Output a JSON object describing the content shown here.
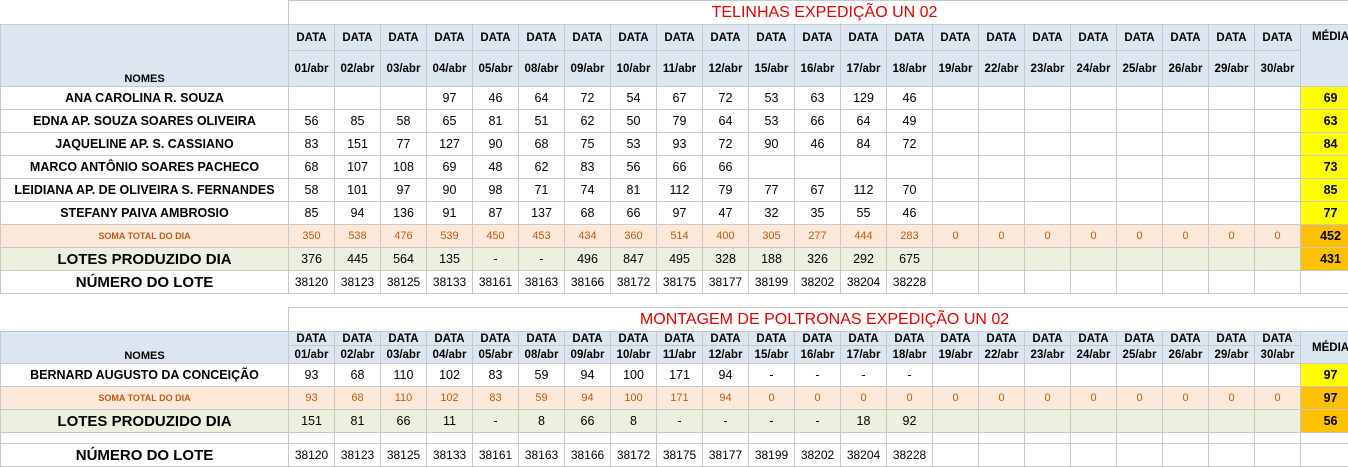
{
  "dates": [
    "01/abr",
    "02/abr",
    "03/abr",
    "04/abr",
    "05/abr",
    "08/abr",
    "09/abr",
    "10/abr",
    "11/abr",
    "12/abr",
    "15/abr",
    "16/abr",
    "17/abr",
    "18/abr",
    "19/abr",
    "22/abr",
    "23/abr",
    "24/abr",
    "25/abr",
    "26/abr",
    "29/abr",
    "30/abr"
  ],
  "data_label": "DATA",
  "media_label": "MÉDIA",
  "nomes_label": "NOMES",
  "soma_label": "SOMA TOTAL DO DIA",
  "lotes_label": "LOTES PRODUZIDO DIA",
  "numero_label": "NÚMERO DO LOTE",
  "section1": {
    "title": "TELINHAS EXPEDIÇÃO UN 02",
    "rows": [
      {
        "name": "ANA CAROLINA R. SOUZA",
        "values": [
          "",
          "",
          "",
          "97",
          "46",
          "64",
          "72",
          "54",
          "67",
          "72",
          "53",
          "63",
          "129",
          "46",
          "",
          "",
          "",
          "",
          "",
          "",
          "",
          ""
        ],
        "media": "69"
      },
      {
        "name": "EDNA AP. SOUZA SOARES OLIVEIRA",
        "values": [
          "56",
          "85",
          "58",
          "65",
          "81",
          "51",
          "62",
          "50",
          "79",
          "64",
          "53",
          "66",
          "64",
          "49",
          "",
          "",
          "",
          "",
          "",
          "",
          "",
          ""
        ],
        "media": "63"
      },
      {
        "name": "JAQUELINE AP.  S. CASSIANO",
        "values": [
          "83",
          "151",
          "77",
          "127",
          "90",
          "68",
          "75",
          "53",
          "93",
          "72",
          "90",
          "46",
          "84",
          "72",
          "",
          "",
          "",
          "",
          "",
          "",
          "",
          ""
        ],
        "media": "84"
      },
      {
        "name": "MARCO ANTÔNIO SOARES PACHECO",
        "values": [
          "68",
          "107",
          "108",
          "69",
          "48",
          "62",
          "83",
          "56",
          "66",
          "66",
          "",
          "",
          "",
          "",
          "",
          "",
          "",
          "",
          "",
          "",
          "",
          ""
        ],
        "media": "73"
      },
      {
        "name": "LEIDIANA AP. DE OLIVEIRA S. FERNANDES",
        "values": [
          "58",
          "101",
          "97",
          "90",
          "98",
          "71",
          "74",
          "81",
          "112",
          "79",
          "77",
          "67",
          "112",
          "70",
          "",
          "",
          "",
          "",
          "",
          "",
          "",
          ""
        ],
        "media": "85"
      },
      {
        "name": "STEFANY PAIVA AMBROSIO",
        "values": [
          "85",
          "94",
          "136",
          "91",
          "87",
          "137",
          "68",
          "66",
          "97",
          "47",
          "32",
          "35",
          "55",
          "46",
          "",
          "",
          "",
          "",
          "",
          "",
          "",
          ""
        ],
        "media": "77"
      }
    ],
    "soma": {
      "values": [
        "350",
        "538",
        "476",
        "539",
        "450",
        "453",
        "434",
        "360",
        "514",
        "400",
        "305",
        "277",
        "444",
        "283",
        "0",
        "0",
        "0",
        "0",
        "0",
        "0",
        "0",
        "0"
      ],
      "media": "452"
    },
    "lotes": {
      "values": [
        "376",
        "445",
        "564",
        "135",
        "-",
        "-",
        "496",
        "847",
        "495",
        "328",
        "188",
        "326",
        "292",
        "675",
        "",
        "",
        "",
        "",
        "",
        "",
        "",
        ""
      ],
      "media": "431"
    },
    "numero": {
      "values": [
        "38120",
        "38123",
        "38125",
        "38133",
        "38161",
        "38163",
        "38166",
        "38172",
        "38175",
        "38177",
        "38199",
        "38202",
        "38204",
        "38228",
        "",
        "",
        "",
        "",
        "",
        "",
        "",
        ""
      ]
    }
  },
  "section2": {
    "title": "MONTAGEM DE POLTRONAS EXPEDIÇÃO UN 02",
    "rows": [
      {
        "name": "BERNARD AUGUSTO DA CONCEIÇÃO",
        "values": [
          "93",
          "68",
          "110",
          "102",
          "83",
          "59",
          "94",
          "100",
          "171",
          "94",
          "-",
          "-",
          "-",
          "-",
          "",
          "",
          "",
          "",
          "",
          "",
          "",
          ""
        ],
        "media": "97"
      }
    ],
    "soma": {
      "values": [
        "93",
        "68",
        "110",
        "102",
        "83",
        "59",
        "94",
        "100",
        "171",
        "94",
        "0",
        "0",
        "0",
        "0",
        "0",
        "0",
        "0",
        "0",
        "0",
        "0",
        "0",
        "0"
      ],
      "media": "97"
    },
    "lotes": {
      "values": [
        "151",
        "81",
        "66",
        "11",
        "-",
        "8",
        "66",
        "8",
        "-",
        "-",
        "-",
        "-",
        "18",
        "92",
        "",
        "",
        "",
        "",
        "",
        "",
        "",
        ""
      ],
      "media": "56"
    },
    "numero": {
      "values": [
        "38120",
        "38123",
        "38125",
        "38133",
        "38161",
        "38163",
        "38166",
        "38172",
        "38175",
        "38177",
        "38199",
        "38202",
        "38204",
        "38228",
        "",
        "",
        "",
        "",
        "",
        "",
        "",
        ""
      ]
    }
  }
}
